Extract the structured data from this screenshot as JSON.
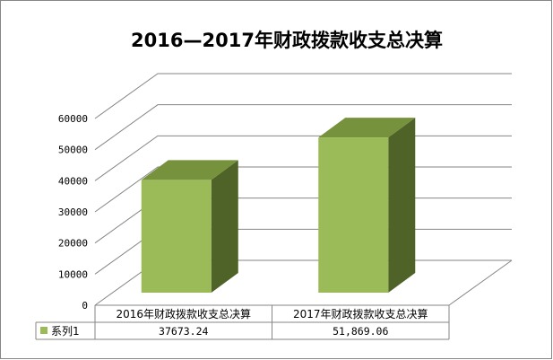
{
  "chart_data": {
    "type": "bar",
    "title": "2016—2017年财政拨款收支总决算",
    "categories": [
      "2016年财政拨款收支总决算",
      "2017年财政拨款收支总决算"
    ],
    "series": [
      {
        "name": "系列1",
        "values": [
          37673.24,
          51869.06
        ],
        "display_values": [
          "37673.24",
          "51,869.06"
        ],
        "color": "#9bbb59"
      }
    ],
    "ylim": [
      0,
      60000
    ],
    "yticks": [
      0,
      10000,
      20000,
      30000,
      40000,
      50000,
      60000
    ],
    "grid": true,
    "legend": "data-table"
  },
  "colors": {
    "bar_front": "#9bbb59",
    "bar_side": "#4f6228",
    "bar_top": "#76923c",
    "grid": "#868686",
    "border": "#868686"
  }
}
